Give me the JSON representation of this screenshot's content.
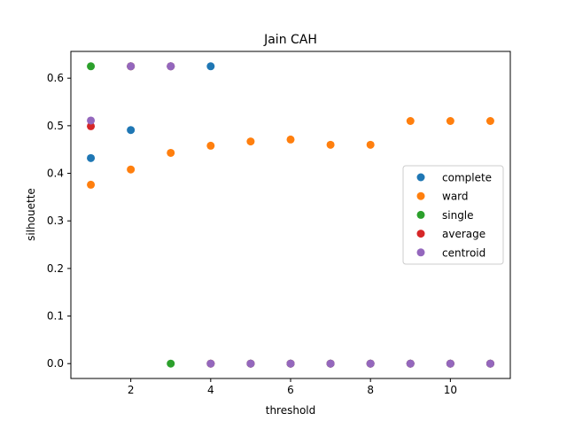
{
  "chart_data": {
    "type": "scatter",
    "title": "Jain CAH",
    "xlabel": "threshold",
    "ylabel": "silhouette",
    "xlim": [
      0.5,
      11.5
    ],
    "ylim": [
      -0.03125,
      0.65625
    ],
    "xticks": [
      2,
      4,
      6,
      8,
      10
    ],
    "yticks": [
      0.0,
      0.1,
      0.2,
      0.3,
      0.4,
      0.5,
      0.6
    ],
    "xtick_labels": [
      "2",
      "4",
      "6",
      "8",
      "10"
    ],
    "ytick_labels": [
      "0.0",
      "0.1",
      "0.2",
      "0.3",
      "0.4",
      "0.5",
      "0.6"
    ],
    "grid": false,
    "legend_position": "center-right",
    "series": [
      {
        "name": "complete",
        "color": "#1f77b4",
        "x": [
          1,
          2,
          3,
          4,
          5,
          6,
          7,
          8,
          9,
          10,
          11
        ],
        "y": [
          0.432,
          0.491,
          0.625,
          0.625,
          0.0,
          0.0,
          0.0,
          0.0,
          0.0,
          0.0,
          0.0
        ]
      },
      {
        "name": "ward",
        "color": "#ff7f0e",
        "x": [
          1,
          2,
          3,
          4,
          5,
          6,
          7,
          8,
          9,
          10,
          11
        ],
        "y": [
          0.376,
          0.408,
          0.443,
          0.458,
          0.467,
          0.471,
          0.46,
          0.46,
          0.51,
          0.51,
          0.51
        ]
      },
      {
        "name": "single",
        "color": "#2ca02c",
        "x": [
          1,
          2,
          3,
          4,
          5,
          6,
          7,
          8,
          9,
          10,
          11
        ],
        "y": [
          0.625,
          0.625,
          0.0,
          0.0,
          0.0,
          0.0,
          0.0,
          0.0,
          0.0,
          0.0,
          0.0
        ]
      },
      {
        "name": "average",
        "color": "#d62728",
        "x": [
          1,
          2,
          3,
          4,
          5,
          6,
          7,
          8,
          9,
          10,
          11
        ],
        "y": [
          0.499,
          0.625,
          0.625,
          0.0,
          0.0,
          0.0,
          0.0,
          0.0,
          0.0,
          0.0,
          0.0
        ]
      },
      {
        "name": "centroid",
        "color": "#9467bd",
        "x": [
          1,
          2,
          3,
          4,
          5,
          6,
          7,
          8,
          9,
          10,
          11
        ],
        "y": [
          0.511,
          0.625,
          0.625,
          0.0,
          0.0,
          0.0,
          0.0,
          0.0,
          0.0,
          0.0,
          0.0
        ]
      }
    ]
  }
}
